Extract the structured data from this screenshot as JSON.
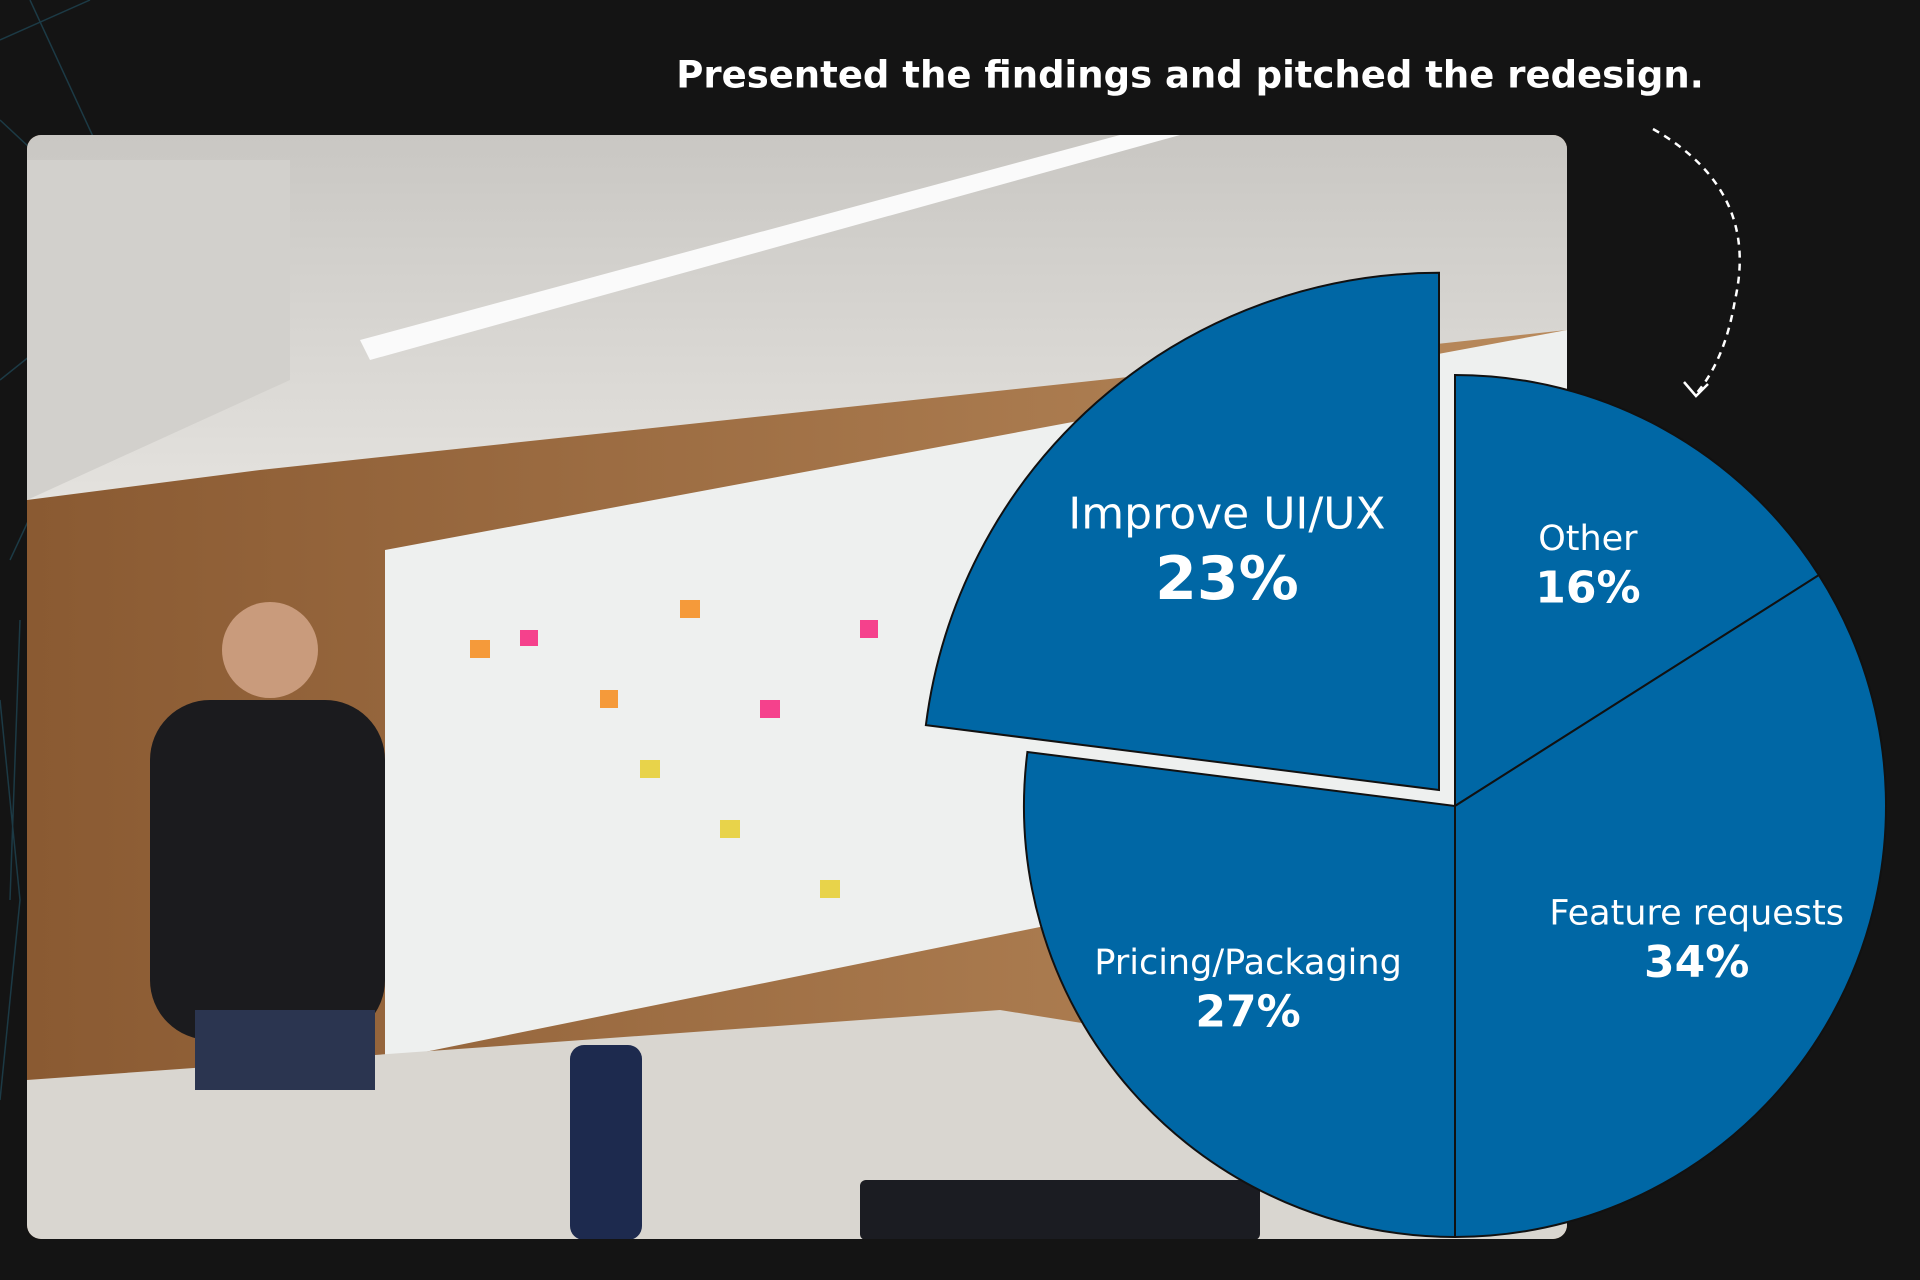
{
  "chart_data": {
    "type": "pie",
    "title": "Presented the findings and pitched the redesign.",
    "categories": [
      "Other",
      "Feature requests",
      "Pricing/Packaging",
      "Improve UI/UX"
    ],
    "values": [
      16,
      34,
      27,
      23
    ],
    "value_labels": [
      "16%",
      "34%",
      "27%",
      "23%"
    ],
    "color": "#0067a5",
    "explode": [
      false,
      false,
      false,
      true
    ]
  }
}
